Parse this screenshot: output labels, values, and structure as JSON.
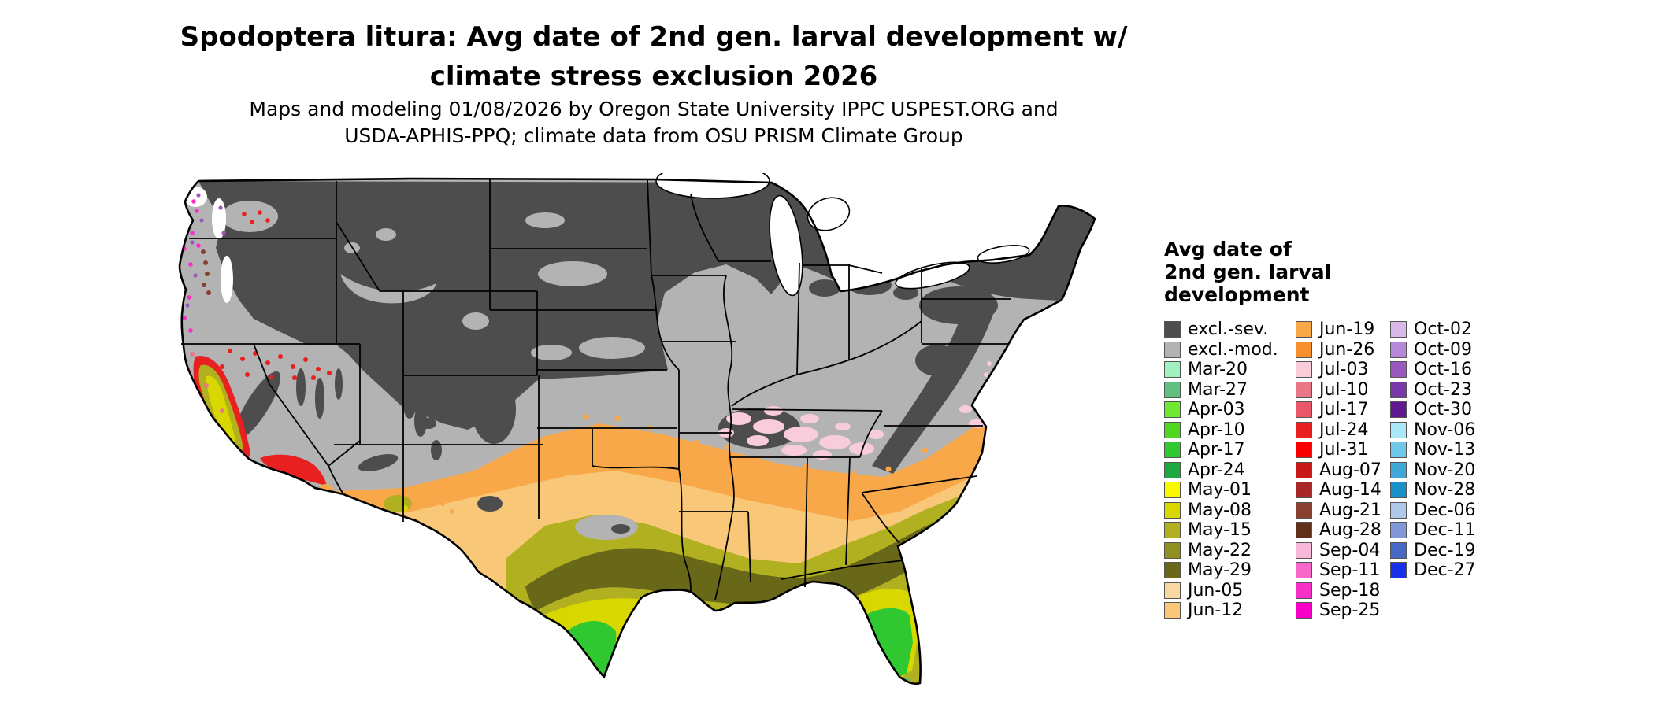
{
  "title": {
    "line1": "Spodoptera litura: Avg date of 2nd gen. larval development w/",
    "line2": "climate stress exclusion 2026"
  },
  "subtitle": {
    "line1": "Maps and modeling 01/08/2026 by Oregon State University IPPC USPEST.ORG and",
    "line2": "USDA-APHIS-PPQ; climate data from OSU PRISM Climate Group"
  },
  "legend": {
    "title_lines": [
      "Avg date of",
      "2nd gen. larval",
      "development"
    ],
    "columns": [
      {
        "entries": [
          {
            "label": "excl.-sev.",
            "color": "#4d4d4d"
          },
          {
            "label": "excl.-mod.",
            "color": "#b3b3b3"
          },
          {
            "label": "Mar-20",
            "color": "#a0f0c0"
          },
          {
            "label": "Mar-27",
            "color": "#60c080"
          },
          {
            "label": "Apr-03",
            "color": "#70e830"
          },
          {
            "label": "Apr-10",
            "color": "#50d820"
          },
          {
            "label": "Apr-17",
            "color": "#30c830"
          },
          {
            "label": "Apr-24",
            "color": "#20a840"
          },
          {
            "label": "May-01",
            "color": "#f8f800"
          },
          {
            "label": "May-08",
            "color": "#d8d800"
          },
          {
            "label": "May-15",
            "color": "#b0b020"
          },
          {
            "label": "May-22",
            "color": "#909020"
          },
          {
            "label": "May-29",
            "color": "#686818"
          },
          {
            "label": "Jun-05",
            "color": "#f8d8a0"
          },
          {
            "label": "Jun-12",
            "color": "#f8c878"
          }
        ]
      },
      {
        "entries": [
          {
            "label": "Jun-19",
            "color": "#f8a848"
          },
          {
            "label": "Jun-26",
            "color": "#f89030"
          },
          {
            "label": "Jul-03",
            "color": "#f8ccd8"
          },
          {
            "label": "Jul-10",
            "color": "#e87888"
          },
          {
            "label": "Jul-17",
            "color": "#e85868"
          },
          {
            "label": "Jul-24",
            "color": "#e82020"
          },
          {
            "label": "Jul-31",
            "color": "#f80000"
          },
          {
            "label": "Aug-07",
            "color": "#c81818"
          },
          {
            "label": "Aug-14",
            "color": "#a82828"
          },
          {
            "label": "Aug-21",
            "color": "#884030"
          },
          {
            "label": "Aug-28",
            "color": "#603018"
          },
          {
            "label": "Sep-04",
            "color": "#f8b8d8"
          },
          {
            "label": "Sep-11",
            "color": "#f868c8"
          },
          {
            "label": "Sep-18",
            "color": "#f830c8"
          },
          {
            "label": "Sep-25",
            "color": "#f800c8"
          }
        ]
      },
      {
        "entries": [
          {
            "label": "Oct-02",
            "color": "#d8b8e8"
          },
          {
            "label": "Oct-09",
            "color": "#b888d8"
          },
          {
            "label": "Oct-16",
            "color": "#9858c0"
          },
          {
            "label": "Oct-23",
            "color": "#7838a8"
          },
          {
            "label": "Oct-30",
            "color": "#601890"
          },
          {
            "label": "Nov-06",
            "color": "#a8e8f8"
          },
          {
            "label": "Nov-13",
            "color": "#70c8e8"
          },
          {
            "label": "Nov-20",
            "color": "#40a8d8"
          },
          {
            "label": "Nov-28",
            "color": "#1890c8"
          },
          {
            "label": "Dec-06",
            "color": "#b0c8e8"
          },
          {
            "label": "Dec-11",
            "color": "#8098d8"
          },
          {
            "label": "Dec-19",
            "color": "#4868c8"
          },
          {
            "label": "Dec-27",
            "color": "#1830e8"
          }
        ]
      }
    ]
  },
  "map": {
    "region": "Contiguous United States",
    "base_moderate_exclusion_color": "#b3b3b3",
    "severe_exclusion_color": "#4d4d4d",
    "outline_color": "#000000",
    "background_color": "#ffffff"
  }
}
